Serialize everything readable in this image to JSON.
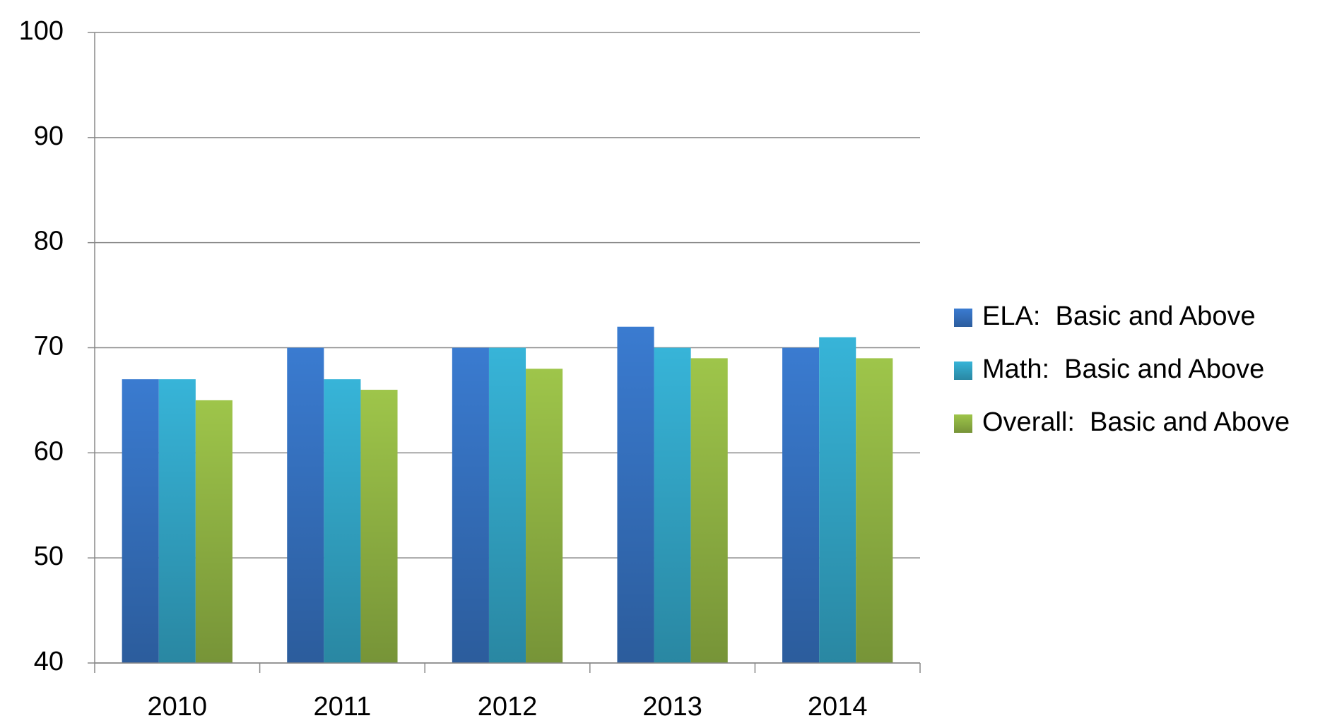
{
  "chart_data": {
    "type": "bar",
    "categories": [
      "2010",
      "2011",
      "2012",
      "2013",
      "2014"
    ],
    "series": [
      {
        "name": "ELA:  Basic and Above",
        "color": "#3a7bd0",
        "values": [
          67,
          70,
          70,
          72,
          70
        ]
      },
      {
        "name": "Math:  Basic and Above",
        "color": "#37b4d8",
        "values": [
          67,
          67,
          70,
          70,
          71
        ]
      },
      {
        "name": "Overall:  Basic and Above",
        "color": "#9ec54a",
        "values": [
          65,
          66,
          68,
          69,
          69
        ]
      }
    ],
    "ylim": [
      40,
      100
    ],
    "yticks": [
      40,
      50,
      60,
      70,
      80,
      90,
      100
    ],
    "grid": true,
    "legend": "right"
  }
}
